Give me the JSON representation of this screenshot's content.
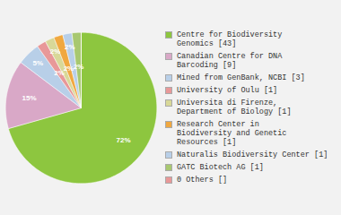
{
  "chart_data": {
    "type": "pie",
    "categories": [
      "Centre for Biodiversity\nGenomics [43]",
      "Canadian Centre for DNA\nBarcoding [9]",
      "Mined from GenBank, NCBI [3]",
      "University of Oulu [1]",
      "Universita di Firenze,\nDepartment of Biology [1]",
      "Research Center in\nBiodiversity and Genetic\nResources [1]",
      "Naturalis Biodiversity Center [1]",
      "GATC Biotech AG [1]",
      "0 Others []"
    ],
    "values": [
      72,
      15,
      5,
      2,
      2,
      2,
      2,
      2,
      0
    ],
    "value_labels": [
      "72%",
      "15%",
      "5%",
      "2%",
      "2%",
      "2%",
      "2%",
      "2%",
      null
    ],
    "colors": [
      "#8dc63f",
      "#d9a8c7",
      "#b8cfe8",
      "#e89898",
      "#d8d898",
      "#f0a840",
      "#b8cfe8",
      "#a8c870",
      "#e89898"
    ],
    "data_labels": true,
    "legend": "right"
  }
}
